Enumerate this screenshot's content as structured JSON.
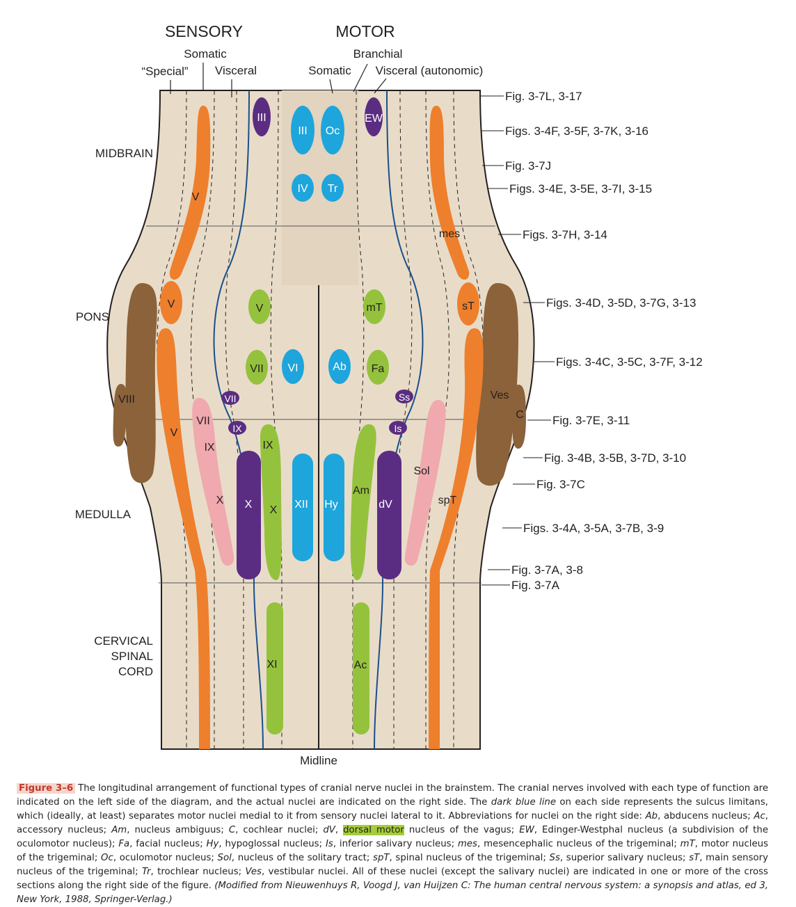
{
  "headers": {
    "sensory": "SENSORY",
    "motor": "MOTOR",
    "somatic_sensory": "Somatic",
    "special": "“Special”",
    "visceral_sensory": "Visceral",
    "branchial": "Branchial",
    "somatic_motor": "Somatic",
    "visceral_motor": "Visceral (autonomic)"
  },
  "regions": {
    "midbrain": "MIDBRAIN",
    "pons": "PONS",
    "medulla": "MEDULLA",
    "cervical": [
      "CERVICAL",
      "SPINAL",
      "CORD"
    ]
  },
  "midline_label": "Midline",
  "figure_refs": [
    "Fig. 3-7L, 3-17",
    "Figs. 3-4F, 3-5F, 3-7K, 3-16",
    "Fig. 3-7J",
    "Figs. 3-4E, 3-5E, 3-7I, 3-15",
    "Figs. 3-7H, 3-14",
    "Figs. 3-4D, 3-5D, 3-7G, 3-13",
    "Figs. 3-4C, 3-5C, 3-7F, 3-12",
    "Fig. 3-7E, 3-11",
    "Fig. 3-4B, 3-5B, 3-7D, 3-10",
    "Fig. 3-7C",
    "Figs. 3-4A, 3-5A, 3-7B, 3-9",
    "Fig. 3-7A, 3-8",
    "Fig. 3-7A"
  ],
  "nuclei_left": {
    "III_visceral": "III",
    "III": "III",
    "IV": "IV",
    "V_upper": "V",
    "V_pons": "V",
    "V_lower": "V",
    "VIII": "VIII",
    "V_motor": "V",
    "VII_motor": "VII",
    "VI": "VI",
    "VII_visceral": "VII",
    "IX_visceral": "IX",
    "VII_special": "VII",
    "IX_special": "IX",
    "X_special": "X",
    "X_visceral": "X",
    "IX_branchial": "IX",
    "X_branchial": "X",
    "XII": "XII",
    "XI": "XI"
  },
  "nuclei_right": {
    "Oc": "Oc",
    "EW": "EW",
    "Tr": "Tr",
    "mes": "mes",
    "mT": "mT",
    "sT": "sT",
    "Ab": "Ab",
    "Fa": "Fa",
    "Ss": "Ss",
    "Ves": "Ves",
    "C": "C",
    "Is": "Is",
    "Sol": "Sol",
    "Am": "Am",
    "dV": "dV",
    "spT": "spT",
    "Hy": "Hy",
    "Ac": "Ac"
  },
  "colors": {
    "background": "#e8dcc8",
    "sulcus_limitans": "#1a4f8c",
    "somatic_sensory": "#ee7f2d",
    "special_sensory": "#8b6239",
    "visceral_sensory": "#f0a9ae",
    "visceral_motor": "#5b2d82",
    "branchial_motor": "#95c23d",
    "somatic_motor": "#1ea5dc",
    "caption_highlight": "#a4cd39"
  },
  "caption": {
    "label": "Figure 3–6",
    "text_1": "The longitudinal arrangement of functional types of cranial nerve nuclei in the brainstem. The cranial nerves involved with each type of function are indicated on the left side of the diagram, and the actual nuclei are indicated on the right side. The ",
    "italic_1": "dark blue line",
    "text_2": " on each side represents the sulcus limitans, which (ideally, at least) separates motor nuclei medial to it from sensory nuclei lateral to it. Abbreviations for nuclei on the right side: ",
    "abbr": [
      [
        "Ab",
        ", abducens nucleus; "
      ],
      [
        "Ac",
        ", accessory nucleus; "
      ],
      [
        "Am",
        ", nucleus ambiguus; "
      ],
      [
        "C",
        ", cochlear nuclei; "
      ],
      [
        "dV",
        ", "
      ]
    ],
    "highlight": "dorsal motor",
    "text_3": " nucleus of the vagus; ",
    "abbr2": [
      [
        "EW",
        ", Edinger-Westphal nucleus (a subdivision of the oculomotor nucleus); "
      ],
      [
        "Fa",
        ", facial nucleus; "
      ],
      [
        "Hy",
        ", hypoglossal nucleus; "
      ],
      [
        "Is",
        ", inferior salivary nucleus; "
      ],
      [
        "mes",
        ", mesencephalic nucleus of the trigeminal; "
      ],
      [
        "mT",
        ", motor nucleus of the trigeminal; "
      ],
      [
        "Oc",
        ", oculomotor nucleus; "
      ],
      [
        "Sol",
        ", nucleus of the solitary tract; "
      ],
      [
        "spT",
        ", spinal nucleus of the trigeminal; "
      ],
      [
        "Ss",
        ", superior salivary nucleus; "
      ],
      [
        "sT",
        ", main sensory nucleus of the trigeminal; "
      ],
      [
        "Tr",
        ", trochlear nucleus; "
      ],
      [
        "Ves",
        ", vestibular nuclei. "
      ]
    ],
    "text_4": "All of these nuclei (except the salivary nuclei) are indicated in one or more of the cross sections along the right side of the figure. ",
    "source": "(Modified from Nieuwenhuys R, Voogd J, van Huijzen C: The human central nervous system: a synopsis and atlas, ed 3, New York, 1988, Springer-Verlag.)"
  }
}
